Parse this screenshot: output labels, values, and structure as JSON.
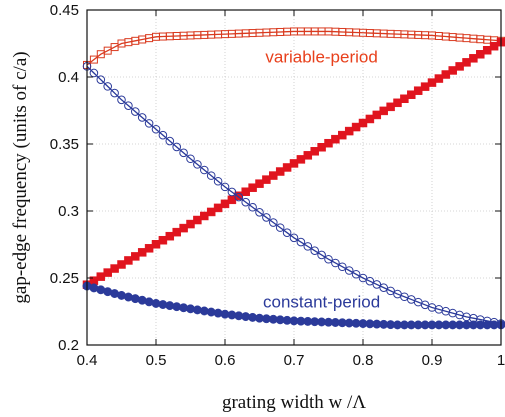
{
  "chart_data": {
    "type": "line",
    "xlabel": "grating width w /Λ",
    "ylabel": "gap-edge frequency (units of c/a)",
    "xlim": [
      0.4,
      1.0
    ],
    "ylim": [
      0.2,
      0.45
    ],
    "x_ticks": [
      "0.4",
      "0.5",
      "0.6",
      "0.7",
      "0.8",
      "0.9",
      "1"
    ],
    "y_ticks": [
      "0.2",
      "0.25",
      "0.3",
      "0.35",
      "0.4",
      "0.45"
    ],
    "grid": true,
    "annotations": [
      {
        "text": "variable-period",
        "color": "#e8401c",
        "x": 0.74,
        "y": 0.411
      },
      {
        "text": "constant-period",
        "color": "#2b3a9a",
        "x": 0.74,
        "y": 0.228
      }
    ],
    "series": [
      {
        "id": "variable-upper",
        "marker": "open-square",
        "color": "#d93a1f",
        "x": [
          0.4,
          0.42,
          0.45,
          0.5,
          0.55,
          0.6,
          0.65,
          0.7,
          0.75,
          0.8,
          0.85,
          0.9,
          0.95,
          1.0
        ],
        "values": [
          0.409,
          0.417,
          0.425,
          0.43,
          0.431,
          0.432,
          0.433,
          0.434,
          0.434,
          0.433,
          0.432,
          0.431,
          0.429,
          0.427
        ]
      },
      {
        "id": "variable-lower",
        "marker": "filled-square",
        "color": "#e0141e",
        "x": [
          0.4,
          1.0
        ],
        "values": [
          0.245,
          0.426
        ]
      },
      {
        "id": "constant-upper",
        "marker": "open-circle",
        "color": "#2b3a9a",
        "x": [
          0.4,
          0.45,
          0.5,
          0.55,
          0.6,
          0.65,
          0.7,
          0.75,
          0.8,
          0.85,
          0.9,
          0.95,
          1.0
        ],
        "values": [
          0.408,
          0.383,
          0.361,
          0.339,
          0.318,
          0.299,
          0.28,
          0.264,
          0.25,
          0.238,
          0.228,
          0.221,
          0.216
        ]
      },
      {
        "id": "constant-lower",
        "marker": "filled-circle",
        "color": "#2b3a9a",
        "x": [
          0.4,
          0.45,
          0.5,
          0.55,
          0.6,
          0.65,
          0.7,
          0.75,
          0.8,
          0.85,
          0.9,
          0.95,
          1.0
        ],
        "values": [
          0.244,
          0.237,
          0.231,
          0.227,
          0.223,
          0.22,
          0.218,
          0.217,
          0.216,
          0.215,
          0.215,
          0.215,
          0.215
        ]
      }
    ]
  }
}
